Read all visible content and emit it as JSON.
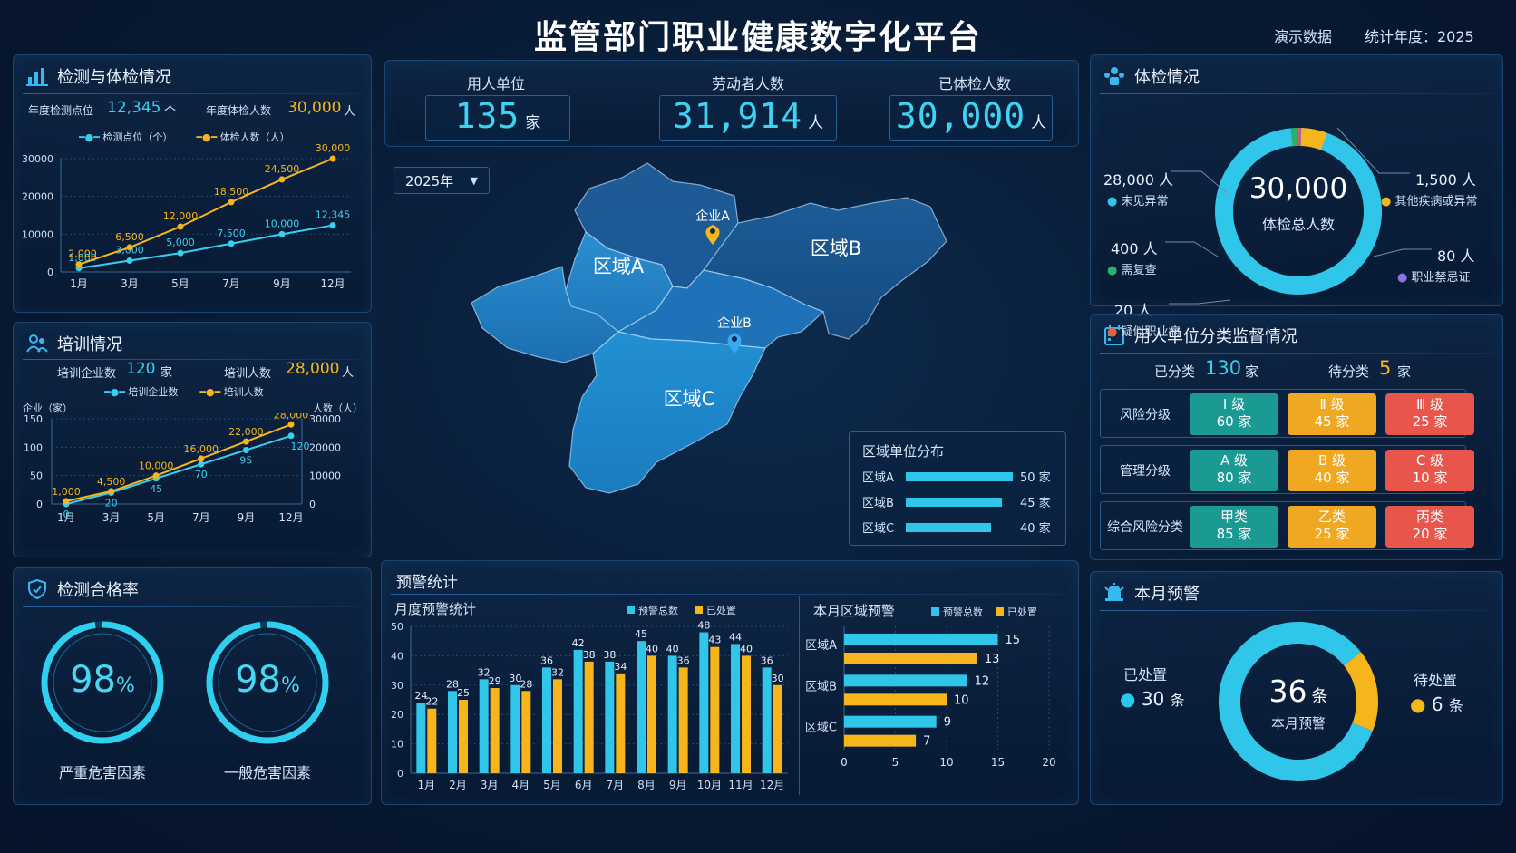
{
  "header": {
    "title": "监管部门职业健康数字化平台",
    "demo_label": "演示数据",
    "year_label": "统计年度：2025"
  },
  "top_stats": [
    {
      "label": "用人单位",
      "value": "135",
      "unit": "家"
    },
    {
      "label": "劳动者人数",
      "value": "31,914",
      "unit": "人"
    },
    {
      "label": "已体检人数",
      "value": "30,000",
      "unit": "人"
    }
  ],
  "map": {
    "year_select": "2025年",
    "regions": [
      "区域A",
      "区域B",
      "区域C"
    ],
    "markers": [
      "企业A",
      "企业B"
    ],
    "distribution": {
      "title": "区域单位分布",
      "rows": [
        {
          "name": "区域A",
          "value": 50,
          "label": "50 家"
        },
        {
          "name": "区域B",
          "value": 45,
          "label": "45 家"
        },
        {
          "name": "区域C",
          "value": 40,
          "label": "40 家"
        }
      ]
    }
  },
  "inspection": {
    "title": "检测与体检情况",
    "stat1_label": "年度检测点位",
    "stat1_value": "12,345",
    "stat1_unit": "个",
    "stat2_label": "年度体检人数",
    "stat2_value": "30,000",
    "stat2_unit": "人",
    "legend": [
      "检测点位（个）",
      "体检人数（人）"
    ]
  },
  "training": {
    "title": "培训情况",
    "stat1_label": "培训企业数",
    "stat1_value": "120",
    "stat1_unit": "家",
    "stat2_label": "培训人数",
    "stat2_value": "28,000",
    "stat2_unit": "人",
    "legend": [
      "培训企业数",
      "培训人数"
    ],
    "left_axis": "企业（家）",
    "right_axis": "人数（人）"
  },
  "pass_rate": {
    "title": "检测合格率",
    "items": [
      {
        "value": "98",
        "unit": "%",
        "label": "严重危害因素",
        "ratio": 0.98
      },
      {
        "value": "98",
        "unit": "%",
        "label": "一般危害因素",
        "ratio": 0.98
      }
    ]
  },
  "warning_stats": {
    "title": "预警统计",
    "monthly_title": "月度预警统计",
    "region_title": "本月区域预警",
    "legend": [
      "预警总数",
      "已处置"
    ]
  },
  "exam": {
    "title": "体检情况",
    "center_value": "30,000",
    "center_label": "体检总人数",
    "items": [
      {
        "value": "28,000 人",
        "label": "未见异常",
        "color": "#2fc6ea"
      },
      {
        "value": "400 人",
        "label": "需复查",
        "color": "#27b36a"
      },
      {
        "value": "20 人",
        "label": "疑似职业病",
        "color": "#e8613f"
      },
      {
        "value": "1,500 人",
        "label": "其他疾病或异常",
        "color": "#f7b51c"
      },
      {
        "value": "80 人",
        "label": "职业禁忌证",
        "color": "#8a72e0"
      }
    ]
  },
  "classification": {
    "title": "用人单位分类监督情况",
    "classified_label": "已分类",
    "classified_value": "130",
    "classified_unit": "家",
    "pending_label": "待分类",
    "pending_value": "5",
    "pending_unit": "家",
    "rows": [
      {
        "label": "风险分级",
        "chips": [
          {
            "name": "Ⅰ 级",
            "count": "60 家"
          },
          {
            "name": "Ⅱ 级",
            "count": "45 家"
          },
          {
            "name": "Ⅲ 级",
            "count": "25 家"
          }
        ]
      },
      {
        "label": "管理分级",
        "chips": [
          {
            "name": "A 级",
            "count": "80 家"
          },
          {
            "name": "B 级",
            "count": "40 家"
          },
          {
            "name": "C 级",
            "count": "10 家"
          }
        ]
      },
      {
        "label": "综合风险分类",
        "chips": [
          {
            "name": "甲类",
            "count": "85 家"
          },
          {
            "name": "乙类",
            "count": "25 家"
          },
          {
            "name": "丙类",
            "count": "20 家"
          }
        ]
      }
    ]
  },
  "monthly_alert": {
    "title": "本月预警",
    "center_value": "36",
    "center_unit": "条",
    "center_label": "本月预警",
    "handled_label": "已处置",
    "handled_value": "30",
    "handled_unit": "条",
    "pending_label": "待处置",
    "pending_value": "6",
    "pending_unit": "条"
  },
  "chart_data": [
    {
      "type": "line",
      "x": [
        "1月",
        "3月",
        "5月",
        "7月",
        "9月",
        "12月"
      ],
      "ylim": [
        0,
        30000
      ],
      "yticks": [
        0,
        10000,
        20000,
        30000
      ],
      "series": [
        {
          "name": "检测点位（个）",
          "color": "#38d0f0",
          "values": [
            1000,
            3000,
            5000,
            7500,
            10000,
            12345
          ],
          "labels": [
            "1,000",
            "3,000",
            "5,000",
            "7,500",
            "10,000",
            "12,345"
          ]
        },
        {
          "name": "体检人数（人）",
          "color": "#f7b51c",
          "values": [
            2000,
            6500,
            12000,
            18500,
            24500,
            30000
          ],
          "labels": [
            "2,000",
            "6,500",
            "12,000",
            "18,500",
            "24,500",
            "30,000"
          ]
        }
      ]
    },
    {
      "type": "line",
      "x": [
        "1月",
        "3月",
        "5月",
        "7月",
        "9月",
        "12月"
      ],
      "ylim_left": [
        0,
        150
      ],
      "yticks_left": [
        0,
        50,
        100,
        150
      ],
      "ylim_right": [
        0,
        30000
      ],
      "yticks_right": [
        0,
        10000,
        20000,
        30000
      ],
      "series": [
        {
          "name": "培训企业数",
          "axis": "left",
          "color": "#38d0f0",
          "values": [
            0,
            20,
            45,
            70,
            95,
            120
          ],
          "labels": [
            "0",
            "20",
            "45",
            "70",
            "95",
            "120"
          ]
        },
        {
          "name": "培训人数",
          "axis": "right",
          "color": "#f7b51c",
          "values": [
            1000,
            4500,
            10000,
            16000,
            22000,
            28000
          ],
          "labels": [
            "1,000",
            "4,500",
            "10,000",
            "16,000",
            "22,000",
            "28,000"
          ]
        }
      ]
    },
    {
      "type": "bar",
      "categories": [
        "1月",
        "2月",
        "3月",
        "4月",
        "5月",
        "6月",
        "7月",
        "8月",
        "9月",
        "10月",
        "11月",
        "12月"
      ],
      "ylim": [
        0,
        50
      ],
      "yticks": [
        0,
        10,
        20,
        30,
        40,
        50
      ],
      "series": [
        {
          "name": "预警总数",
          "color": "#2fc6ea",
          "values": [
            24,
            28,
            32,
            30,
            36,
            42,
            38,
            45,
            40,
            48,
            44,
            36
          ]
        },
        {
          "name": "已处置",
          "color": "#f7b51c",
          "values": [
            22,
            25,
            29,
            28,
            32,
            38,
            34,
            40,
            36,
            43,
            40,
            30
          ]
        }
      ]
    },
    {
      "type": "bar",
      "orientation": "horizontal",
      "categories": [
        "区域A",
        "区域B",
        "区域C"
      ],
      "xlim": [
        0,
        20
      ],
      "xticks": [
        0,
        5,
        10,
        15,
        20
      ],
      "series": [
        {
          "name": "预警总数",
          "color": "#2fc6ea",
          "values": [
            15,
            12,
            9
          ]
        },
        {
          "name": "已处置",
          "color": "#f7b51c",
          "values": [
            13,
            10,
            7
          ]
        }
      ]
    }
  ]
}
